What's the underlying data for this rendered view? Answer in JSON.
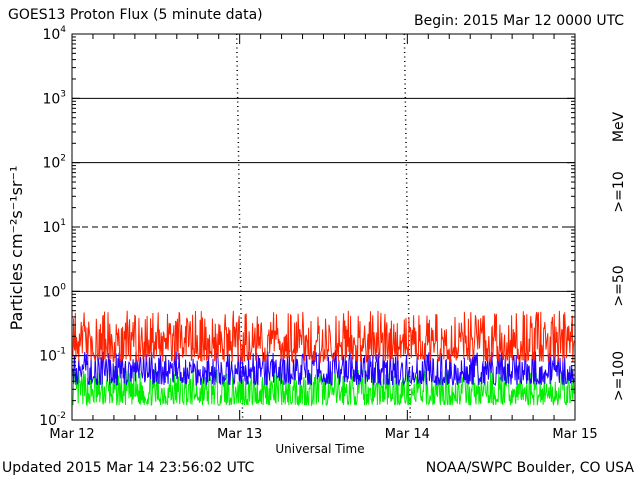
{
  "title": "GOES13 Proton Flux (5 minute data)",
  "begin": "Begin: 2015 Mar 12 0000 UTC",
  "updated": "Updated 2015 Mar 14 23:56:02 UTC",
  "credit": "NOAA/SWPC Boulder, CO USA",
  "chart_data": {
    "type": "line",
    "ylabel": "Particles cm⁻²s⁻¹sr⁻¹",
    "xlabel": "Universal Time",
    "yscale": "log",
    "ylim": [
      0.01,
      10000
    ],
    "y_ticks": [
      {
        "base": "10",
        "exp": "4",
        "value": 10000
      },
      {
        "base": "10",
        "exp": "3",
        "value": 1000
      },
      {
        "base": "10",
        "exp": "2",
        "value": 100
      },
      {
        "base": "10",
        "exp": "1",
        "value": 10
      },
      {
        "base": "10",
        "exp": "0",
        "value": 1
      },
      {
        "base": "10",
        "exp": "-1",
        "value": 0.1
      },
      {
        "base": "10",
        "exp": "-2",
        "value": 0.01
      }
    ],
    "x_ticks": [
      "Mar 12",
      "Mar 13",
      "Mar 14",
      "Mar 15"
    ],
    "unit_label": "MeV",
    "reference_lines": [
      {
        "value": 1000,
        "style": "solid"
      },
      {
        "value": 100,
        "style": "solid"
      },
      {
        "value": 10,
        "style": "dashed"
      },
      {
        "value": 1,
        "style": "solid"
      },
      {
        "value": 0.1,
        "style": "solid"
      }
    ],
    "series": [
      {
        "name": ">=10",
        "color": "#ff2200",
        "typical_range": [
          0.08,
          0.5
        ]
      },
      {
        "name": ">=50",
        "color": "#2200ff",
        "typical_range": [
          0.035,
          0.12
        ]
      },
      {
        "name": ">=100",
        "color": "#00ee00",
        "typical_range": [
          0.017,
          0.06
        ]
      }
    ]
  }
}
